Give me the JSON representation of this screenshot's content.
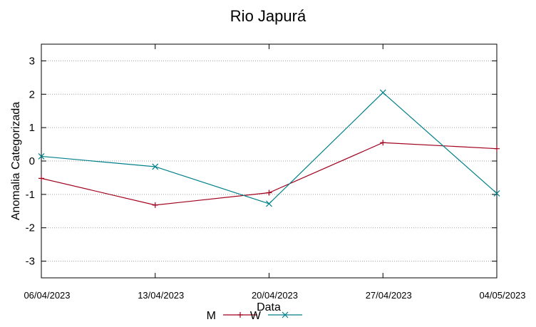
{
  "chart_data": {
    "type": "line",
    "title": "Rio Japurá",
    "xlabel": "Data",
    "ylabel": "Anomalia Categorizada",
    "categories": [
      "06/04/2023",
      "13/04/2023",
      "20/04/2023",
      "27/04/2023",
      "04/05/2023"
    ],
    "ylim": [
      -3.5,
      3.5
    ],
    "yticks": [
      3,
      2,
      1,
      0,
      -1,
      -2,
      -3
    ],
    "grid": true,
    "legend_position": "bottom-center",
    "series": [
      {
        "name": "M",
        "color": "#a0001c",
        "marker": "plus",
        "values": [
          -0.52,
          -1.32,
          -0.95,
          0.55,
          0.37
        ]
      },
      {
        "name": "W",
        "color": "#00808a",
        "marker": "cross",
        "values": [
          0.14,
          -0.17,
          -1.28,
          2.05,
          -0.97
        ]
      }
    ]
  }
}
